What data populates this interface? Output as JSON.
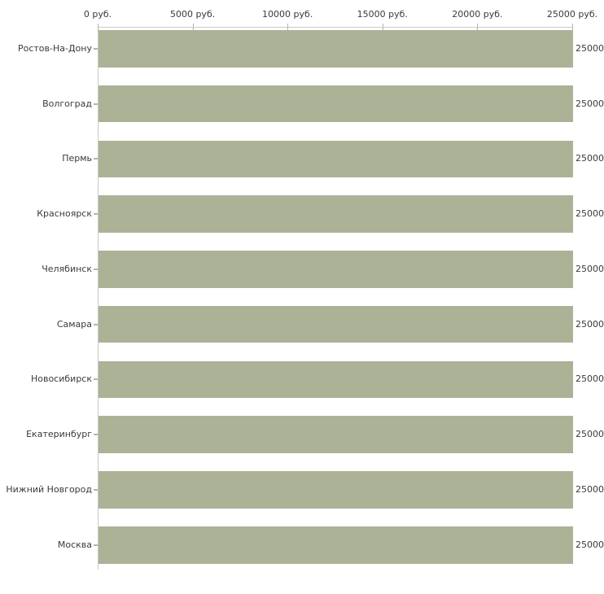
{
  "chart_data": {
    "type": "bar",
    "orientation": "horizontal",
    "title": "",
    "unit": "руб.",
    "categories": [
      "Ростов-На-Дону",
      "Волгоград",
      "Пермь",
      "Красноярск",
      "Челябинск",
      "Самара",
      "Новосибирск",
      "Екатеринбург",
      "Нижний Новгород",
      "Москва"
    ],
    "values": [
      25000,
      25000,
      25000,
      25000,
      25000,
      25000,
      25000,
      25000,
      25000,
      25000
    ],
    "value_labels": [
      "25000",
      "25000",
      "25000",
      "25000",
      "25000",
      "25000",
      "25000",
      "25000",
      "25000",
      "25000"
    ],
    "x_ticks": [
      0,
      5000,
      10000,
      15000,
      20000,
      25000
    ],
    "x_tick_labels": [
      "0 руб.",
      "5000 руб.",
      "10000 руб.",
      "15000 руб.",
      "20000 руб.",
      "25000 руб."
    ],
    "xlim": [
      0,
      25000
    ],
    "axis_position": "top",
    "grid": false,
    "legend": false,
    "colors": {
      "bar": "#ABB296",
      "axis_line": "#C9C9C9",
      "tick": "#B4B89A",
      "text": "#3A3A3A",
      "background": "#FFFFFF"
    }
  }
}
